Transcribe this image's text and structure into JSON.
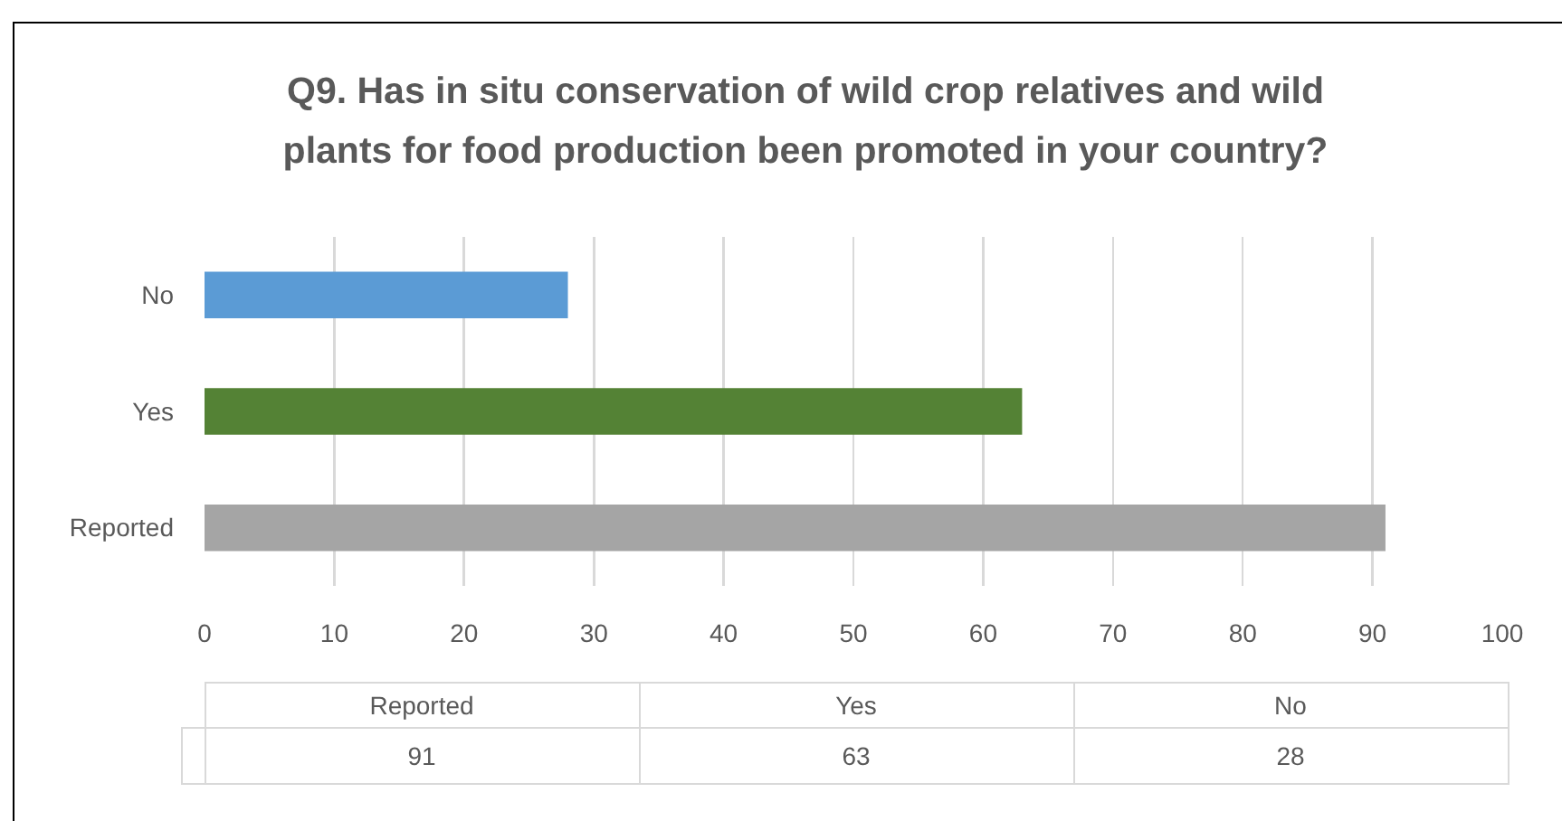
{
  "chart_data": [
    {
      "type": "bar",
      "orientation": "horizontal",
      "title": "Q9. Has in situ conservation of wild crop relatives and wild plants for food production been promoted in your country?",
      "categories": [
        "No",
        "Yes",
        "Reported"
      ],
      "values": [
        28,
        63,
        91
      ],
      "colors": [
        "#5b9bd5",
        "#548235",
        "#a5a5a5"
      ],
      "xlim": [
        0,
        100
      ],
      "xticks": [
        0,
        10,
        20,
        30,
        40,
        50,
        60,
        70,
        80,
        90,
        100
      ],
      "grid": "x"
    },
    {
      "type": "other",
      "categories": [
        "Reported",
        "Yes",
        "No"
      ],
      "values": [
        91,
        63,
        28
      ],
      "data_labels": true
    }
  ]
}
